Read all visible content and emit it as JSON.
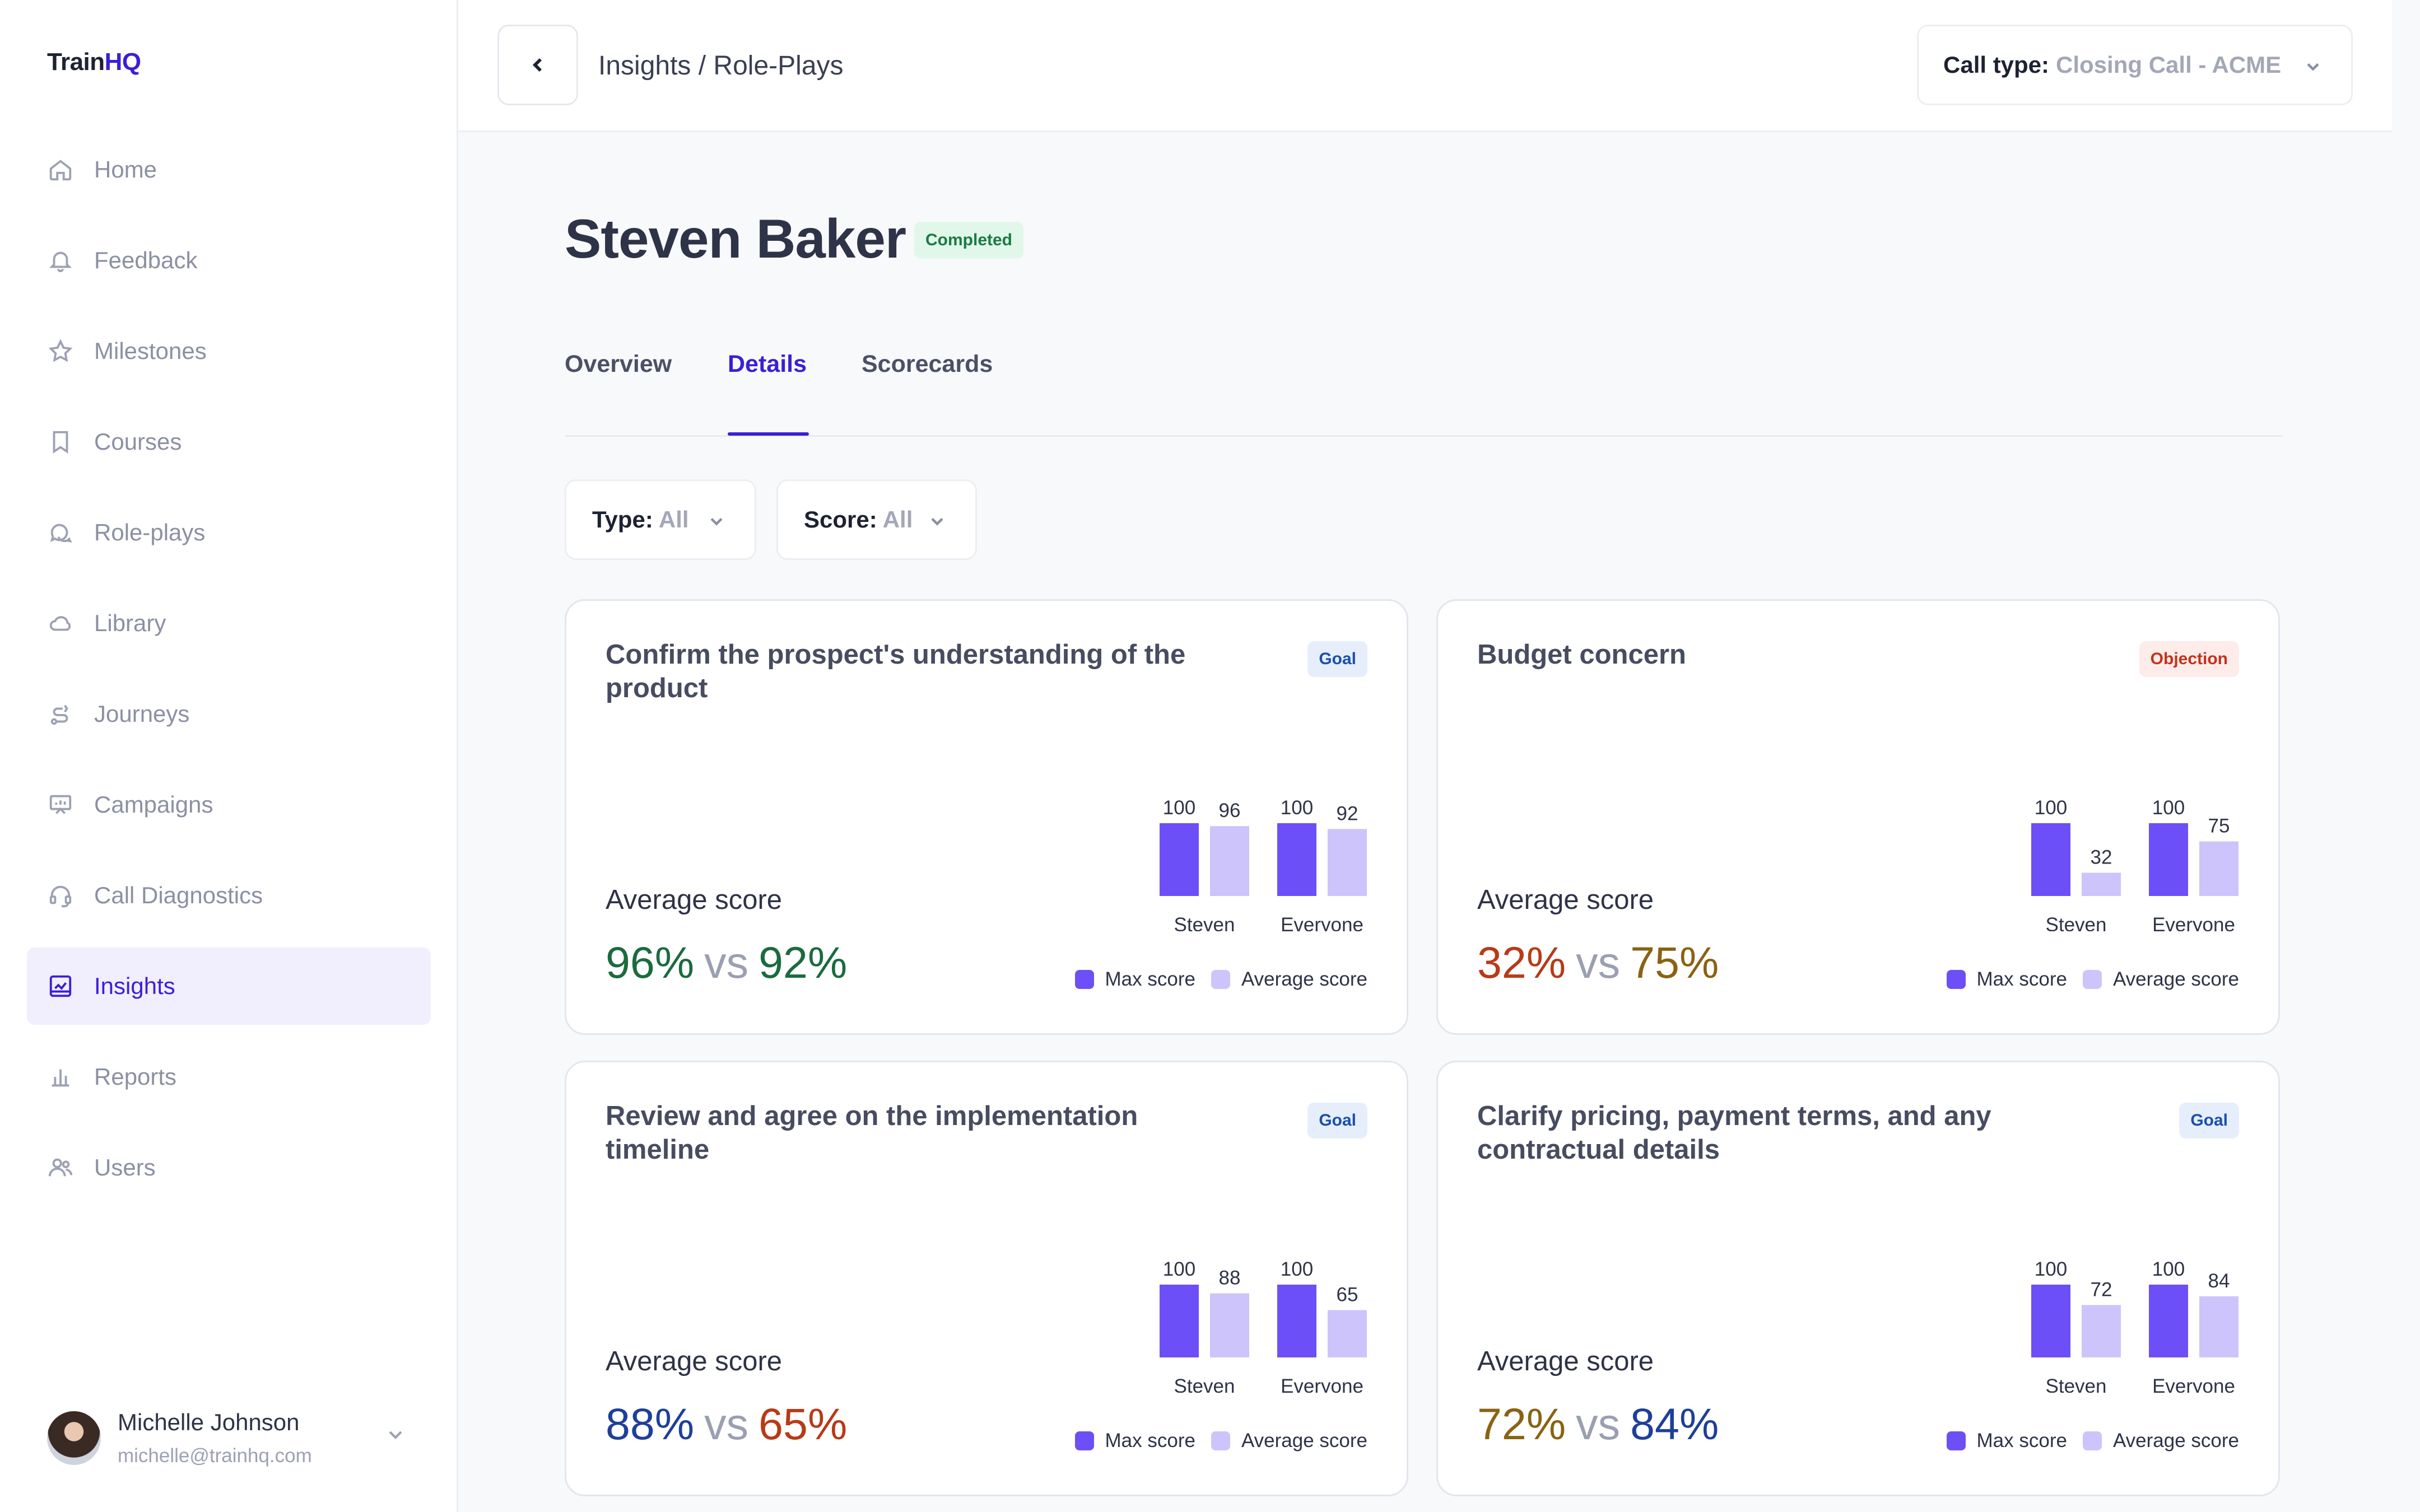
{
  "app": {
    "logo_prefix": "Train",
    "logo_suffix": "HQ"
  },
  "sidebar": {
    "items": [
      {
        "label": "Home",
        "icon": "home-icon"
      },
      {
        "label": "Feedback",
        "icon": "bell-icon"
      },
      {
        "label": "Milestones",
        "icon": "star-icon"
      },
      {
        "label": "Courses",
        "icon": "bookmark-icon"
      },
      {
        "label": "Role-plays",
        "icon": "chat-icon"
      },
      {
        "label": "Library",
        "icon": "cloud-icon"
      },
      {
        "label": "Journeys",
        "icon": "route-icon"
      },
      {
        "label": "Campaigns",
        "icon": "presentation-icon"
      },
      {
        "label": "Call Diagnostics",
        "icon": "headset-icon"
      },
      {
        "label": "Insights",
        "icon": "insights-icon",
        "active": true
      },
      {
        "label": "Reports",
        "icon": "bar-chart-icon"
      },
      {
        "label": "Users",
        "icon": "users-icon"
      }
    ],
    "user": {
      "name": "Michelle Johnson",
      "email": "michelle@trainhq.com"
    }
  },
  "header": {
    "breadcrumb": "Insights / Role-Plays",
    "call_type_label": "Call type:",
    "call_type_value": "Closing Call - ACME"
  },
  "main": {
    "title": "Steven Baker",
    "status": "Completed",
    "tabs": [
      {
        "label": "Overview"
      },
      {
        "label": "Details",
        "active": true
      },
      {
        "label": "Scorecards"
      }
    ],
    "filters": {
      "type_label": "Type:",
      "type_value": "All",
      "score_label": "Score:",
      "score_value": "All"
    }
  },
  "colors": {
    "accent": "#3b1fd6",
    "max_bar": "#6c4ff6",
    "avg_bar": "#cdc4fb",
    "green": "#1b6b3e",
    "olive": "#8a6212",
    "red": "#b83a17",
    "blue": "#1e3f9a"
  },
  "legend": {
    "max": "Max score",
    "avg": "Average score"
  },
  "avg_label": "Average score",
  "vs_text": "vs",
  "chart_data": [
    {
      "type": "bar",
      "title": "Confirm the prospect's understanding of the product",
      "tag": "Goal",
      "categories": [
        "Steven",
        "Everyone"
      ],
      "series": [
        {
          "name": "Max score",
          "values": [
            100,
            100
          ]
        },
        {
          "name": "Average score",
          "values": [
            96,
            92
          ]
        }
      ],
      "summary": {
        "left": "96%",
        "right": "92%",
        "left_color": "#1b6b3e",
        "right_color": "#1b6b3e"
      }
    },
    {
      "type": "bar",
      "title": "Budget concern",
      "tag": "Objection",
      "categories": [
        "Steven",
        "Everyone"
      ],
      "series": [
        {
          "name": "Max score",
          "values": [
            100,
            100
          ]
        },
        {
          "name": "Average score",
          "values": [
            32,
            75
          ]
        }
      ],
      "summary": {
        "left": "32%",
        "right": "75%",
        "left_color": "#b83a17",
        "right_color": "#8a6212"
      }
    },
    {
      "type": "bar",
      "title": "Review and agree on the implementation timeline",
      "tag": "Goal",
      "categories": [
        "Steven",
        "Everyone"
      ],
      "series": [
        {
          "name": "Max score",
          "values": [
            100,
            100
          ]
        },
        {
          "name": "Average score",
          "values": [
            88,
            65
          ]
        }
      ],
      "summary": {
        "left": "88%",
        "right": "65%",
        "left_color": "#1e3f9a",
        "right_color": "#b83a17"
      }
    },
    {
      "type": "bar",
      "title": "Clarify pricing, payment terms, and any contractual details",
      "tag": "Goal",
      "categories": [
        "Steven",
        "Everyone"
      ],
      "series": [
        {
          "name": "Max score",
          "values": [
            100,
            100
          ]
        },
        {
          "name": "Average score",
          "values": [
            72,
            84
          ]
        }
      ],
      "summary": {
        "left": "72%",
        "right": "84%",
        "left_color": "#8a6212",
        "right_color": "#1e3f9a"
      }
    }
  ]
}
